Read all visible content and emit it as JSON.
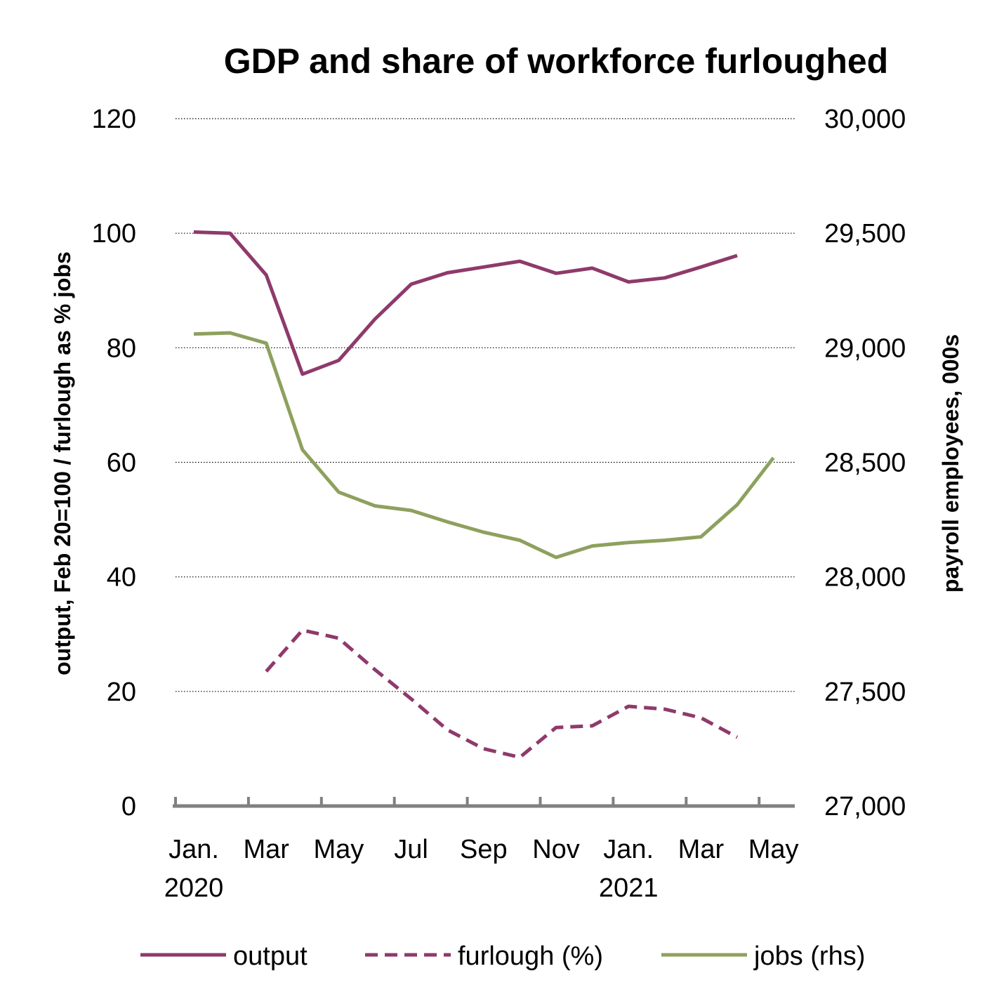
{
  "chart_data": {
    "type": "line",
    "title": "GDP and share of workforce furloughed",
    "ylabel_left": "output, Feb 20=100 / furlough as % jobs",
    "ylabel_right": "payroll employees, 000s",
    "ylim_left": [
      0,
      120
    ],
    "ylim_right": [
      27000,
      30000
    ],
    "yticks_left": [
      "0",
      "20",
      "40",
      "60",
      "80",
      "100",
      "120"
    ],
    "yticks_right": [
      "27,000",
      "27,500",
      "28,000",
      "28,500",
      "29,000",
      "29,500",
      "30,000"
    ],
    "grid": true,
    "legend_position": "bottom",
    "x": [
      "2020-01",
      "2020-02",
      "2020-03",
      "2020-04",
      "2020-05",
      "2020-06",
      "2020-07",
      "2020-08",
      "2020-09",
      "2020-10",
      "2020-11",
      "2020-12",
      "2021-01",
      "2021-02",
      "2021-03",
      "2021-04",
      "2021-05"
    ],
    "x_tick_labels": [
      {
        "month": "Jan.",
        "year": "2020"
      },
      {
        "month": "Mar",
        "year": ""
      },
      {
        "month": "May",
        "year": ""
      },
      {
        "month": "Jul",
        "year": ""
      },
      {
        "month": "Sep",
        "year": ""
      },
      {
        "month": "Nov",
        "year": ""
      },
      {
        "month": "Jan.",
        "year": "2021"
      },
      {
        "month": "Mar",
        "year": ""
      },
      {
        "month": "May",
        "year": ""
      }
    ],
    "series": [
      {
        "name": "output",
        "axis": "left",
        "color": "#8e3a6b",
        "style": "solid",
        "values": [
          100.2,
          100.0,
          92.7,
          75.4,
          77.8,
          85.0,
          91.1,
          93.1,
          94.1,
          95.1,
          93.0,
          93.9,
          91.5,
          92.2,
          94.1,
          96.1,
          null
        ]
      },
      {
        "name": "furlough (%)",
        "axis": "left",
        "color": "#8e3a6b",
        "style": "dashed",
        "values": [
          null,
          null,
          23.5,
          30.7,
          29.3,
          23.8,
          18.7,
          13.3,
          10.0,
          8.5,
          13.7,
          14.0,
          17.4,
          16.9,
          15.4,
          12.0,
          null
        ]
      },
      {
        "name": "jobs (rhs)",
        "axis": "right",
        "color": "#8da15e",
        "style": "solid",
        "values": [
          29060,
          29065,
          29020,
          28555,
          28370,
          28310,
          28290,
          28240,
          28195,
          28160,
          28085,
          28135,
          28150,
          28160,
          28175,
          28315,
          28520
        ]
      }
    ]
  }
}
